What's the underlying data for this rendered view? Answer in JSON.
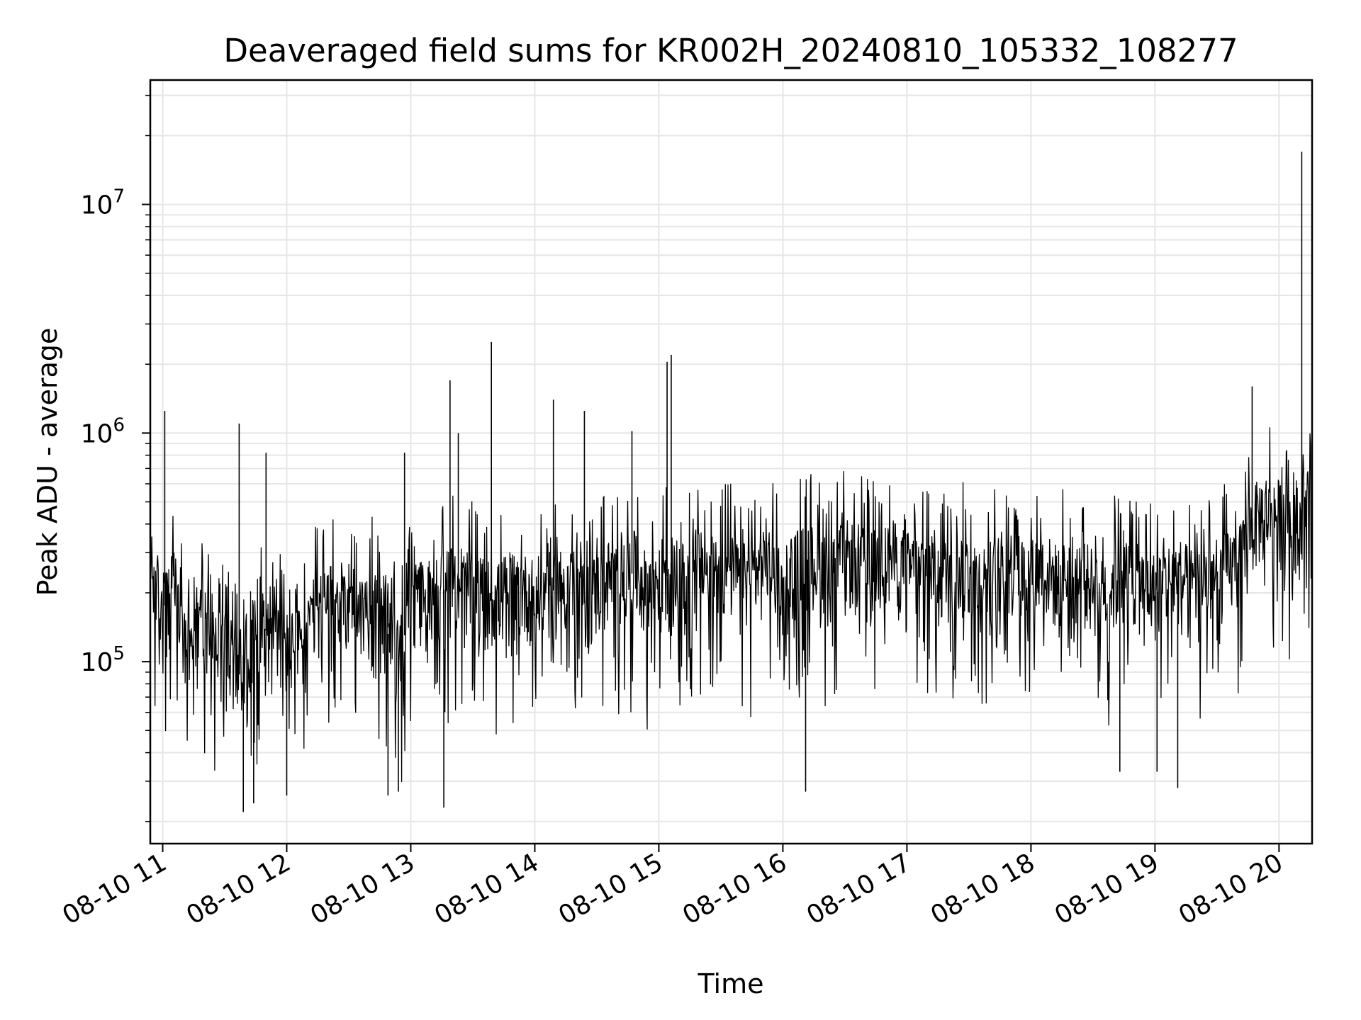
{
  "chart_data": {
    "type": "line",
    "title": "Deaveraged field sums for KR002H_20240810_105332_108277",
    "xlabel": "Time",
    "ylabel": "Peak ADU - average",
    "x_axis": {
      "kind": "time",
      "range": [
        "08-10 10:54",
        "08-10 20:16"
      ],
      "ticks": [
        {
          "time": "08-10 11:00",
          "label": "08-10 11"
        },
        {
          "time": "08-10 12:00",
          "label": "08-10 12"
        },
        {
          "time": "08-10 13:00",
          "label": "08-10 13"
        },
        {
          "time": "08-10 14:00",
          "label": "08-10 14"
        },
        {
          "time": "08-10 15:00",
          "label": "08-10 15"
        },
        {
          "time": "08-10 16:00",
          "label": "08-10 16"
        },
        {
          "time": "08-10 17:00",
          "label": "08-10 17"
        },
        {
          "time": "08-10 18:00",
          "label": "08-10 18"
        },
        {
          "time": "08-10 19:00",
          "label": "08-10 19"
        },
        {
          "time": "08-10 20:00",
          "label": "08-10 20"
        }
      ]
    },
    "y_axis": {
      "scale": "log",
      "range": [
        16000,
        35000000
      ],
      "ticks": [
        {
          "value": 100000,
          "base": "10",
          "exp": "5"
        },
        {
          "value": 1000000,
          "base": "10",
          "exp": "6"
        },
        {
          "value": 10000000,
          "base": "10",
          "exp": "7"
        }
      ]
    },
    "grid": true,
    "line_color": "#000000",
    "grid_color": "#e6e6e6",
    "series": [
      {
        "x": [
          "08-10 10:54",
          "08-10 11:00",
          "08-10 11:06",
          "08-10 11:12",
          "08-10 11:18",
          "08-10 11:24",
          "08-10 11:30",
          "08-10 11:36",
          "08-10 11:42",
          "08-10 11:48",
          "08-10 11:54",
          "08-10 12:00",
          "08-10 12:06",
          "08-10 12:12",
          "08-10 12:18",
          "08-10 12:24",
          "08-10 12:30",
          "08-10 12:36",
          "08-10 12:42",
          "08-10 12:48",
          "08-10 12:54",
          "08-10 13:00",
          "08-10 13:06",
          "08-10 13:12",
          "08-10 13:18",
          "08-10 13:24",
          "08-10 13:30",
          "08-10 13:36",
          "08-10 13:42",
          "08-10 13:48",
          "08-10 13:54",
          "08-10 14:00",
          "08-10 14:06",
          "08-10 14:12",
          "08-10 14:18",
          "08-10 14:24",
          "08-10 14:30",
          "08-10 14:36",
          "08-10 14:42",
          "08-10 14:48",
          "08-10 14:54",
          "08-10 15:00",
          "08-10 15:06",
          "08-10 15:12",
          "08-10 15:18",
          "08-10 15:24",
          "08-10 15:30",
          "08-10 15:36",
          "08-10 15:42",
          "08-10 15:48",
          "08-10 15:54",
          "08-10 16:00",
          "08-10 16:06",
          "08-10 16:12",
          "08-10 16:18",
          "08-10 16:24",
          "08-10 16:30",
          "08-10 16:36",
          "08-10 16:42",
          "08-10 16:48",
          "08-10 16:54",
          "08-10 17:00",
          "08-10 17:06",
          "08-10 17:12",
          "08-10 17:18",
          "08-10 17:24",
          "08-10 17:30",
          "08-10 17:36",
          "08-10 17:42",
          "08-10 17:48",
          "08-10 17:54",
          "08-10 18:00",
          "08-10 18:06",
          "08-10 18:12",
          "08-10 18:18",
          "08-10 18:24",
          "08-10 18:30",
          "08-10 18:36",
          "08-10 18:42",
          "08-10 18:48",
          "08-10 18:54",
          "08-10 19:00",
          "08-10 19:06",
          "08-10 19:12",
          "08-10 19:18",
          "08-10 19:24",
          "08-10 19:30",
          "08-10 19:36",
          "08-10 19:42",
          "08-10 19:48",
          "08-10 19:54",
          "08-10 20:00",
          "08-10 20:06",
          "08-10 20:12",
          "08-10 20:16"
        ],
        "y": [
          250000,
          170000,
          210000,
          90000,
          150000,
          120000,
          110000,
          95000,
          120000,
          140000,
          130000,
          110000,
          115000,
          150000,
          170000,
          180000,
          190000,
          160000,
          175000,
          140000,
          100000,
          170000,
          190000,
          200000,
          210000,
          220000,
          200000,
          190000,
          180000,
          210000,
          200000,
          190000,
          200000,
          210000,
          220000,
          180000,
          200000,
          230000,
          210000,
          250000,
          200000,
          230000,
          240000,
          220000,
          260000,
          230000,
          250000,
          240000,
          220000,
          240000,
          260000,
          230000,
          250000,
          270000,
          260000,
          240000,
          280000,
          270000,
          250000,
          260000,
          280000,
          250000,
          240000,
          260000,
          230000,
          250000,
          240000,
          220000,
          230000,
          260000,
          240000,
          230000,
          250000,
          220000,
          240000,
          230000,
          210000,
          200000,
          220000,
          230000,
          210000,
          200000,
          220000,
          230000,
          210000,
          220000,
          230000,
          250000,
          270000,
          400000,
          450000,
          420000,
          400000,
          470000,
          500000
        ]
      }
    ],
    "spikes": [
      {
        "time": "08-10 11:01",
        "value": 1250000
      },
      {
        "time": "08-10 11:37",
        "value": 1100000
      },
      {
        "time": "08-10 11:50",
        "value": 820000
      },
      {
        "time": "08-10 12:57",
        "value": 820000
      },
      {
        "time": "08-10 13:19",
        "value": 1700000
      },
      {
        "time": "08-10 13:23",
        "value": 1000000
      },
      {
        "time": "08-10 13:39",
        "value": 2500000
      },
      {
        "time": "08-10 14:09",
        "value": 1400000
      },
      {
        "time": "08-10 14:24",
        "value": 1250000
      },
      {
        "time": "08-10 14:47",
        "value": 1020000
      },
      {
        "time": "08-10 15:04",
        "value": 2050000
      },
      {
        "time": "08-10 15:06",
        "value": 2200000
      },
      {
        "time": "08-10 19:47",
        "value": 1600000
      },
      {
        "time": "08-10 20:11",
        "value": 17000000
      },
      {
        "time": "08-10 11:39",
        "value": 22000
      },
      {
        "time": "08-10 11:44",
        "value": 24000
      },
      {
        "time": "08-10 12:00",
        "value": 26000
      },
      {
        "time": "08-10 12:49",
        "value": 26000
      },
      {
        "time": "08-10 12:54",
        "value": 27000
      },
      {
        "time": "08-10 13:16",
        "value": 23000
      },
      {
        "time": "08-10 16:11",
        "value": 27000
      },
      {
        "time": "08-10 18:43",
        "value": 33000
      },
      {
        "time": "08-10 19:01",
        "value": 33000
      },
      {
        "time": "08-10 19:11",
        "value": 28000
      }
    ]
  }
}
